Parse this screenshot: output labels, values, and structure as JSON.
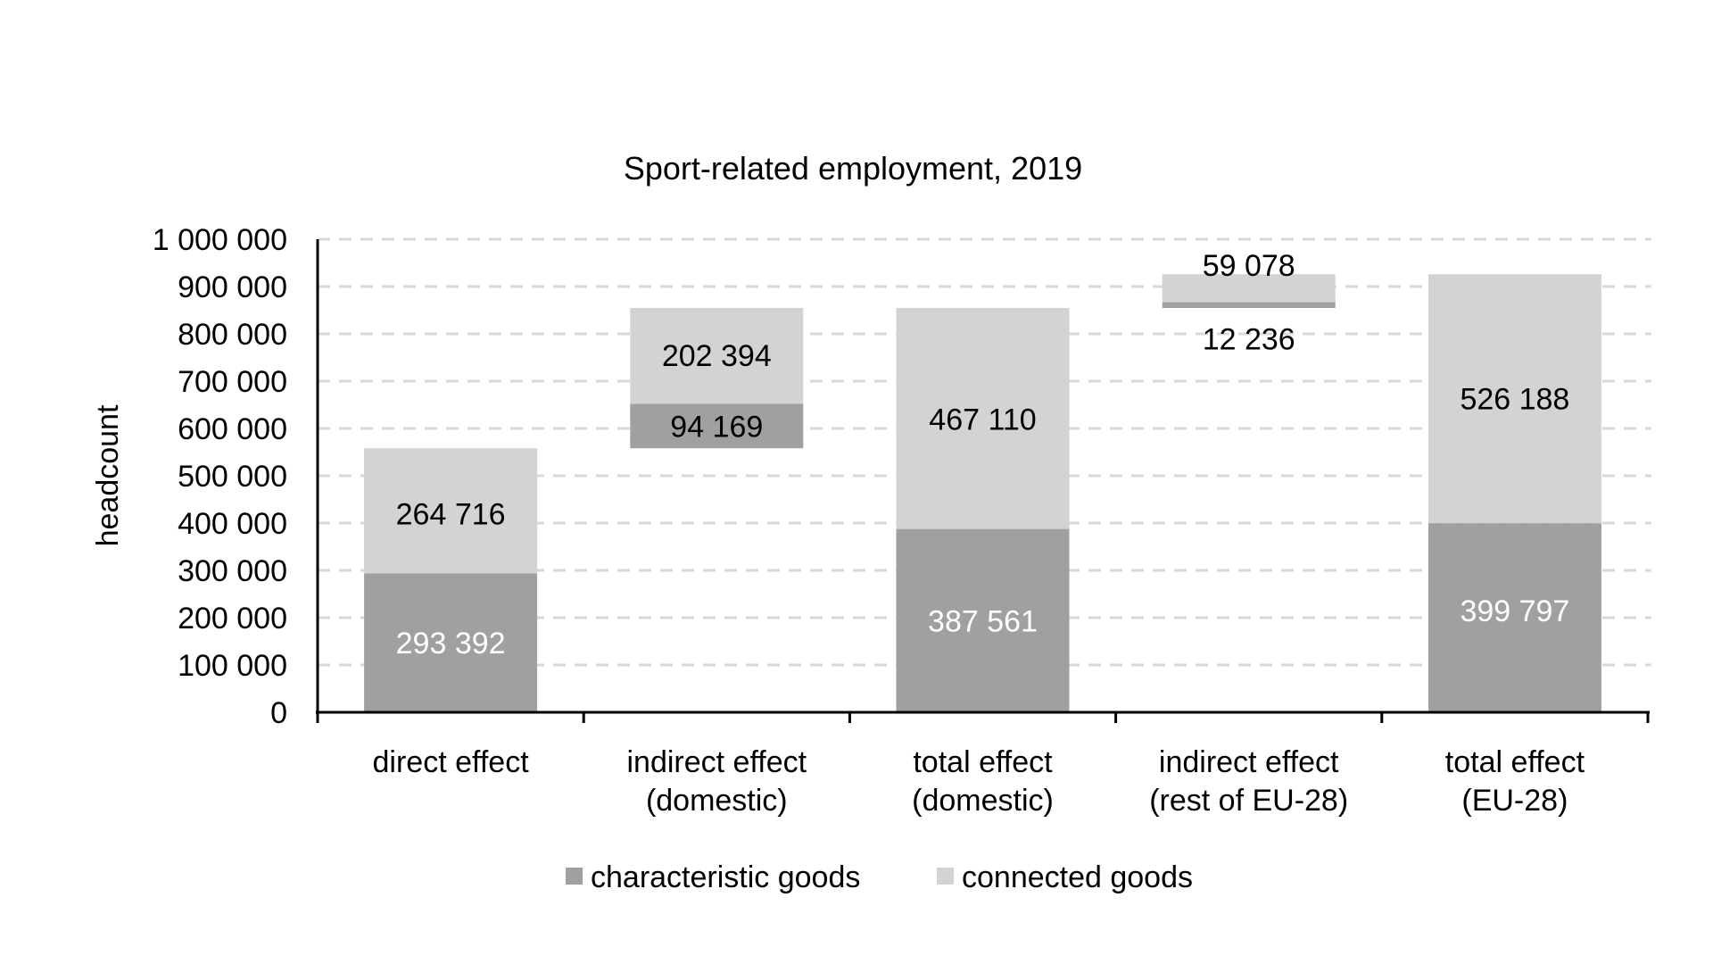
{
  "chart_data": {
    "type": "bar",
    "subtype": "stacked-waterfall",
    "title": "Sport-related employment, 2019",
    "xlabel": "",
    "ylabel": "headcount",
    "ylim": [
      0,
      1000000
    ],
    "yticks": [
      0,
      100000,
      200000,
      300000,
      400000,
      500000,
      600000,
      700000,
      800000,
      900000,
      1000000
    ],
    "ytick_labels": [
      "0",
      "100 000",
      "200 000",
      "300 000",
      "400 000",
      "500 000",
      "600 000",
      "700 000",
      "800 000",
      "900 000",
      "1 000 000"
    ],
    "grid": true,
    "categories": [
      [
        "direct effect"
      ],
      [
        "indirect effect",
        "(domestic)"
      ],
      [
        "total effect",
        "(domestic)"
      ],
      [
        "indirect effect",
        "(rest of EU-28)"
      ],
      [
        "total effect",
        "(EU-28)"
      ]
    ],
    "base": [
      0,
      558108,
      0,
      854671,
      0
    ],
    "series": [
      {
        "name": "characteristic goods",
        "color": "#a0a0a0",
        "values": [
          293392,
          94169,
          387561,
          12236,
          399797
        ],
        "labels": [
          "293 392",
          "94 169",
          "387 561",
          "12 236",
          "399 797"
        ]
      },
      {
        "name": "connected goods",
        "color": "#d3d3d3",
        "values": [
          264716,
          202394,
          467110,
          59078,
          526188
        ],
        "labels": [
          "264 716",
          "202 394",
          "467 110",
          "59 078",
          "526 188"
        ]
      }
    ],
    "legend": {
      "position": "bottom"
    }
  }
}
